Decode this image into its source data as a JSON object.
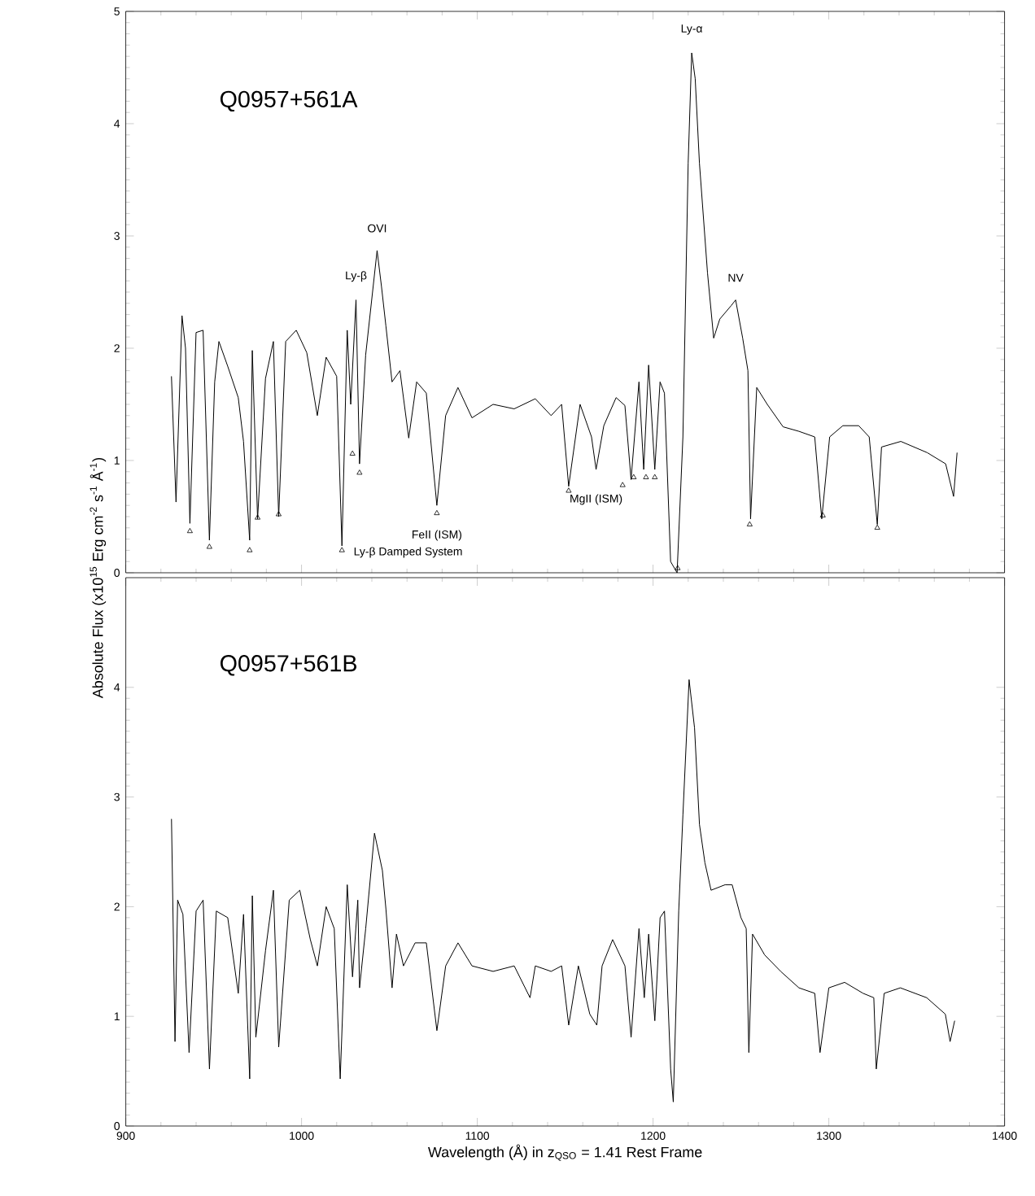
{
  "chart_data": [
    {
      "type": "line",
      "title": "Q0957+561A",
      "xlim": [
        900,
        1400
      ],
      "xticks": [
        900,
        1000,
        1100,
        1200,
        1300,
        1400
      ],
      "ylim": [
        0,
        5
      ],
      "yticks": [
        0,
        1,
        2,
        3,
        4,
        5
      ],
      "tick_labels": "y",
      "series": [
        {
          "color": "#000000",
          "x": [
            926,
            928.6,
            932,
            934,
            936.5,
            940,
            944,
            947.6,
            950.6,
            953,
            958,
            964,
            967,
            970.5,
            972,
            975,
            979.5,
            984,
            987,
            991,
            997,
            1003,
            1009,
            1014,
            1020,
            1023,
            1026,
            1028,
            1031,
            1033,
            1036.5,
            1043,
            1045.5,
            1048,
            1051.5,
            1056,
            1061,
            1065.5,
            1071,
            1077,
            1082,
            1089,
            1097,
            1109,
            1121,
            1133,
            1142,
            1148,
            1152,
            1158.5,
            1165,
            1167.6,
            1172,
            1179,
            1184,
            1187.5,
            1192,
            1194.7,
            1197.5,
            1201,
            1204,
            1206.5,
            1210,
            1213.7,
            1217,
            1220,
            1222,
            1224,
            1226.4,
            1231,
            1234.5,
            1238,
            1244.5,
            1247,
            1251,
            1254,
            1255.5,
            1259,
            1265,
            1274,
            1283,
            1292,
            1296,
            1300.5,
            1308,
            1317,
            1323,
            1327.6,
            1330,
            1341,
            1356,
            1366.5,
            1371,
            1373
          ],
          "values": [
            1.75,
            0.63,
            2.29,
            2.0,
            0.44,
            2.14,
            2.16,
            0.29,
            1.7,
            2.06,
            1.84,
            1.56,
            1.17,
            0.29,
            1.98,
            0.48,
            1.73,
            2.06,
            0.5,
            2.06,
            2.16,
            1.96,
            1.4,
            1.92,
            1.75,
            0.24,
            2.16,
            1.5,
            2.43,
            0.97,
            1.94,
            2.87,
            2.55,
            2.2,
            1.7,
            1.8,
            1.2,
            1.7,
            1.6,
            0.6,
            1.4,
            1.65,
            1.38,
            1.5,
            1.46,
            1.55,
            1.4,
            1.5,
            0.77,
            1.5,
            1.21,
            0.92,
            1.31,
            1.56,
            1.49,
            0.83,
            1.7,
            0.92,
            1.85,
            0.92,
            1.7,
            1.6,
            0.1,
            0.0,
            1.21,
            3.65,
            4.63,
            4.4,
            3.65,
            2.67,
            2.09,
            2.26,
            2.38,
            2.43,
            2.09,
            1.8,
            0.48,
            1.65,
            1.5,
            1.3,
            1.26,
            1.21,
            0.48,
            1.21,
            1.31,
            1.31,
            1.21,
            0.43,
            1.12,
            1.17,
            1.07,
            0.97,
            0.68,
            1.07
          ]
        },
        {
          "type": "scatter",
          "marker": "triangle",
          "color": "#000000",
          "x": [
            936.5,
            947.6,
            970.5,
            975,
            987,
            1023,
            1029,
            1033,
            1077,
            1152,
            1182.7,
            1189,
            1196,
            1201,
            1214,
            1255,
            1296.6,
            1327.6
          ],
          "values": [
            0.37,
            0.23,
            0.2,
            0.49,
            0.52,
            0.2,
            1.06,
            0.89,
            0.53,
            0.73,
            0.78,
            0.85,
            0.85,
            0.85,
            0.04,
            0.43,
            0.51,
            0.4
          ]
        }
      ],
      "annotations": [
        {
          "text": "Ly-β",
          "x": 1031,
          "y": 2.43
        },
        {
          "text": "OVI",
          "x": 1043,
          "y": 2.87
        },
        {
          "text": "Ly-α",
          "x": 1222,
          "y": 4.63
        },
        {
          "text": "NV",
          "x": 1247,
          "y": 2.43
        },
        {
          "text": "FeII (ISM)",
          "x": 1077,
          "y": 0.6
        },
        {
          "text": "MgII (ISM)",
          "x": 1167.6,
          "y": 0.92
        },
        {
          "text": "Ly-β Damped System",
          "x": 1023,
          "y": 0.24
        }
      ]
    },
    {
      "type": "line",
      "title": "Q0957+561B",
      "xlabel": "Wavelength (Å) in z$_{QSO}$ = 1.41 Rest Frame",
      "ylabel": "Absolute Flux (x10$^{15}$ Erg cm$^{-2}$ s$^{-1}$ Å$^{-1}$)",
      "xlim": [
        900,
        1400
      ],
      "xticks": [
        900,
        1000,
        1100,
        1200,
        1300,
        1400
      ],
      "ylim": [
        0,
        5
      ],
      "yticks": [
        0,
        1,
        2,
        3,
        4
      ],
      "series": [
        {
          "color": "#000000",
          "x": [
            926,
            928,
            929.5,
            932.5,
            936,
            940,
            944,
            947.6,
            951.5,
            958,
            964,
            967,
            970.5,
            972,
            974,
            979.5,
            984,
            987,
            993,
            999,
            1005,
            1009,
            1014,
            1018.6,
            1022,
            1026,
            1029,
            1032,
            1033,
            1036.5,
            1041.5,
            1046,
            1048,
            1051.5,
            1054,
            1058,
            1064.6,
            1071,
            1077,
            1082,
            1089,
            1097,
            1109,
            1121,
            1130,
            1133,
            1142,
            1148,
            1152,
            1157.5,
            1164,
            1168,
            1171,
            1177,
            1184,
            1187.5,
            1192,
            1195,
            1197.5,
            1201,
            1204,
            1206.5,
            1210,
            1211.5,
            1214.6,
            1217,
            1220.5,
            1223.6,
            1226.4,
            1229.5,
            1233,
            1241,
            1245,
            1250,
            1253,
            1254.5,
            1256.6,
            1263.5,
            1272.6,
            1283,
            1292,
            1295,
            1300,
            1309,
            1319.5,
            1325.6,
            1327,
            1331.5,
            1340.7,
            1355.7,
            1366.3,
            1369,
            1371.6
          ],
          "values": [
            2.8,
            0.77,
            2.06,
            1.93,
            0.67,
            1.96,
            2.06,
            0.52,
            1.96,
            1.9,
            1.21,
            1.93,
            0.43,
            2.1,
            0.81,
            1.6,
            2.15,
            0.72,
            2.06,
            2.15,
            1.7,
            1.46,
            2.0,
            1.8,
            0.43,
            2.2,
            1.36,
            2.06,
            1.26,
            1.8,
            2.67,
            2.33,
            1.98,
            1.26,
            1.75,
            1.46,
            1.67,
            1.67,
            0.87,
            1.46,
            1.67,
            1.46,
            1.41,
            1.46,
            1.17,
            1.46,
            1.41,
            1.46,
            0.92,
            1.46,
            1.02,
            0.92,
            1.46,
            1.7,
            1.46,
            0.81,
            1.8,
            1.17,
            1.75,
            0.96,
            1.9,
            1.96,
            0.52,
            0.22,
            1.96,
            2.84,
            4.07,
            3.63,
            2.75,
            2.4,
            2.15,
            2.2,
            2.2,
            1.9,
            1.8,
            0.67,
            1.75,
            1.56,
            1.41,
            1.26,
            1.21,
            0.67,
            1.26,
            1.31,
            1.21,
            1.17,
            0.52,
            1.21,
            1.26,
            1.17,
            1.02,
            0.77,
            0.96
          ]
        }
      ]
    }
  ]
}
